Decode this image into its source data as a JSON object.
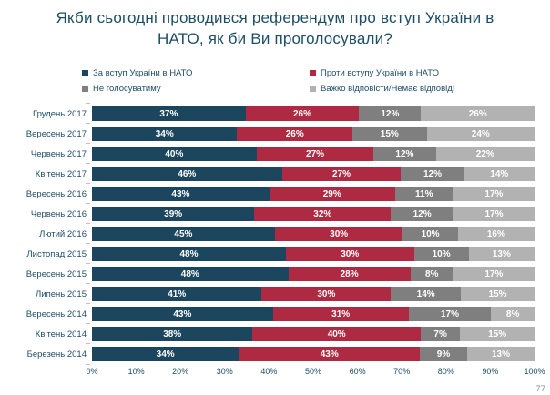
{
  "title": {
    "lines": [
      "Якби сьогодні проводився референдум про вступ України в",
      "НАТО, як би Ви проголосували?"
    ]
  },
  "page_number": "77",
  "colors": {
    "support": "#1c465e",
    "against": "#ae2a43",
    "wont_vote": "#7f7f7f",
    "no_answer": "#b2b2b2",
    "text": "#1d4e66"
  },
  "legend": [
    {
      "label": "За вступ України в НАТО",
      "color": "#1c465e"
    },
    {
      "label": "Проти вступу України в НАТО",
      "color": "#ae2a43"
    },
    {
      "label": "Не голосуватиму",
      "color": "#7f7f7f"
    },
    {
      "label": "Важко відповісти/Немає відповіді",
      "color": "#b2b2b2"
    }
  ],
  "chart_data": {
    "type": "bar",
    "orientation": "horizontal-stacked",
    "value_suffix": "%",
    "xlim": [
      0,
      100
    ],
    "x_ticks": [
      "0%",
      "10%",
      "20%",
      "30%",
      "40%",
      "50%",
      "60%",
      "70%",
      "80%",
      "90%",
      "100%"
    ],
    "categories": [
      "Грудень 2017",
      "Вересень 2017",
      "Червень 2017",
      "Квітень 2017",
      "Вересень 2016",
      "Червень 2016",
      "Лютий 2016",
      "Листопад 2015",
      "Вересень 2015",
      "Липень 2015",
      "Вересень 2014",
      "Квітень 2014",
      "Березень 2014"
    ],
    "series": [
      {
        "key": "support",
        "name": "За вступ України в НАТО",
        "color": "#1c465e",
        "values": [
          37,
          34,
          40,
          46,
          43,
          39,
          45,
          48,
          48,
          41,
          43,
          38,
          34
        ]
      },
      {
        "key": "against",
        "name": "Проти вступу України в НАТО",
        "color": "#ae2a43",
        "values": [
          26,
          26,
          27,
          27,
          29,
          32,
          30,
          30,
          28,
          30,
          31,
          40,
          43
        ]
      },
      {
        "key": "wont-vote",
        "name": "Не голосуватиму",
        "color": "#7f7f7f",
        "values": [
          12,
          15,
          12,
          12,
          11,
          12,
          10,
          10,
          8,
          14,
          17,
          7,
          9
        ]
      },
      {
        "key": "no-answer",
        "name": "Важко відповісти/Немає відповіді",
        "color": "#b2b2b2",
        "values": [
          26,
          24,
          22,
          14,
          17,
          17,
          16,
          13,
          17,
          15,
          8,
          15,
          13
        ]
      }
    ]
  }
}
